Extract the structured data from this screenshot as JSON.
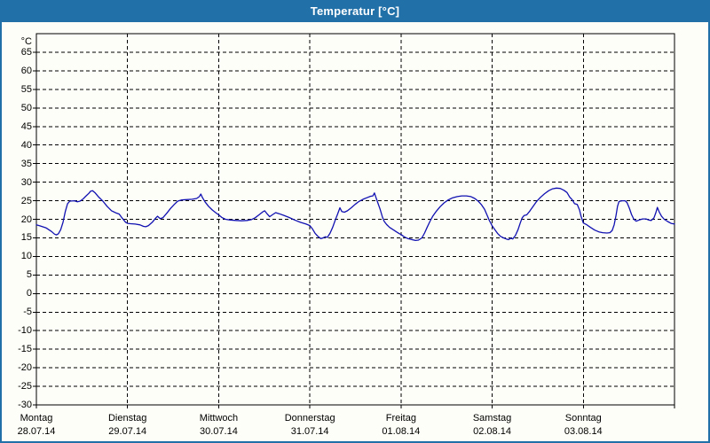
{
  "window": {
    "title": "Temperatur [°C]"
  },
  "chart_data": {
    "type": "line",
    "title": "Temperatur [°C]",
    "unit_label": "°C",
    "legend": "none",
    "grid": {
      "style": "dashed",
      "horizontal_step_deg": 5,
      "vertical_step_hours": 24
    },
    "y_axis": {
      "min": -30,
      "max": 70,
      "tick_step": 5,
      "tick_labels": [
        65,
        60,
        55,
        50,
        45,
        40,
        35,
        30,
        25,
        20,
        15,
        10,
        5,
        0,
        -5,
        -10,
        -15,
        -20,
        -25,
        -30
      ]
    },
    "x_axis": {
      "hours_total": 168,
      "days": [
        {
          "weekday": "Montag",
          "date": "28.07.14"
        },
        {
          "weekday": "Dienstag",
          "date": "29.07.14"
        },
        {
          "weekday": "Mittwoch",
          "date": "30.07.14"
        },
        {
          "weekday": "Donnerstag",
          "date": "31.07.14"
        },
        {
          "weekday": "Freitag",
          "date": "01.08.14"
        },
        {
          "weekday": "Samstag",
          "date": "02.08.14"
        },
        {
          "weekday": "Sonntag",
          "date": "03.08.14"
        }
      ]
    },
    "colors": {
      "titlebar": "#2170a8",
      "title_text": "#ffffff",
      "background": "#fdfef7",
      "plot_border": "#000000",
      "gridline": "#000000",
      "curve": "#1010b2"
    },
    "series": [
      {
        "name": "Temperatur",
        "unit": "°C",
        "points": [
          [
            0,
            18.5
          ],
          [
            1,
            18.2
          ],
          [
            2.5,
            17.7
          ],
          [
            4,
            16.7
          ],
          [
            4.8,
            16.0
          ],
          [
            5.3,
            15.8
          ],
          [
            5.8,
            16.1
          ],
          [
            6.4,
            17.2
          ],
          [
            7,
            19.2
          ],
          [
            7.6,
            22.0
          ],
          [
            8.2,
            24.2
          ],
          [
            8.8,
            24.9
          ],
          [
            10,
            25.0
          ],
          [
            10.8,
            24.7
          ],
          [
            11.5,
            24.9
          ],
          [
            12.2,
            25.4
          ],
          [
            13,
            26.2
          ],
          [
            13.8,
            27.0
          ],
          [
            14.3,
            27.6
          ],
          [
            14.8,
            27.7
          ],
          [
            15.5,
            27.1
          ],
          [
            16.4,
            26.0
          ],
          [
            17.5,
            24.9
          ],
          [
            18.6,
            23.5
          ],
          [
            19.8,
            22.3
          ],
          [
            21,
            21.7
          ],
          [
            21.8,
            21.4
          ],
          [
            22.6,
            20.3
          ],
          [
            23.5,
            19.2
          ],
          [
            24,
            18.9
          ],
          [
            24.8,
            18.8
          ],
          [
            26,
            18.7
          ],
          [
            27.3,
            18.5
          ],
          [
            28.2,
            18.1
          ],
          [
            28.8,
            18.0
          ],
          [
            29.5,
            18.3
          ],
          [
            30.5,
            19.2
          ],
          [
            31.4,
            20.3
          ],
          [
            31.9,
            20.8
          ],
          [
            32.6,
            20.2
          ],
          [
            33.3,
            20.4
          ],
          [
            34.3,
            21.6
          ],
          [
            35.3,
            22.9
          ],
          [
            36.3,
            24.0
          ],
          [
            37.2,
            24.9
          ],
          [
            38.2,
            25.2
          ],
          [
            39.5,
            25.3
          ],
          [
            41,
            25.4
          ],
          [
            42.2,
            25.6
          ],
          [
            42.9,
            26.1
          ],
          [
            43.3,
            26.8
          ],
          [
            43.7,
            25.9
          ],
          [
            44.4,
            24.7
          ],
          [
            45.3,
            23.5
          ],
          [
            46.3,
            22.5
          ],
          [
            47.2,
            21.8
          ],
          [
            48,
            21.2
          ],
          [
            48.8,
            20.5
          ],
          [
            49.8,
            20.0
          ],
          [
            51,
            19.8
          ],
          [
            52.5,
            19.7
          ],
          [
            54,
            19.6
          ],
          [
            55.5,
            19.7
          ],
          [
            56.6,
            19.9
          ],
          [
            57.6,
            20.4
          ],
          [
            58.6,
            21.2
          ],
          [
            59.6,
            22.0
          ],
          [
            60.1,
            22.3
          ],
          [
            60.8,
            21.4
          ],
          [
            61.4,
            20.7
          ],
          [
            62.1,
            21.2
          ],
          [
            63,
            21.8
          ],
          [
            63.9,
            21.5
          ],
          [
            65,
            21.1
          ],
          [
            66.5,
            20.5
          ],
          [
            68,
            19.8
          ],
          [
            69.5,
            19.2
          ],
          [
            71,
            18.7
          ],
          [
            72,
            18.3
          ],
          [
            72.7,
            17.4
          ],
          [
            73.4,
            16.2
          ],
          [
            74.2,
            15.3
          ],
          [
            74.9,
            14.8
          ],
          [
            75.5,
            15.0
          ],
          [
            76.1,
            15.3
          ],
          [
            76.6,
            15.1
          ],
          [
            77.3,
            16.2
          ],
          [
            78,
            17.8
          ],
          [
            78.7,
            19.8
          ],
          [
            79.3,
            21.4
          ],
          [
            79.9,
            23.1
          ],
          [
            80.4,
            22.1
          ],
          [
            81.1,
            21.9
          ],
          [
            81.9,
            22.3
          ],
          [
            82.9,
            23.1
          ],
          [
            83.9,
            24.0
          ],
          [
            84.9,
            24.8
          ],
          [
            86,
            25.4
          ],
          [
            87,
            25.8
          ],
          [
            88,
            26.2
          ],
          [
            88.6,
            26.3
          ],
          [
            89,
            27.1
          ],
          [
            89.4,
            25.9
          ],
          [
            89.9,
            24.4
          ],
          [
            90.5,
            22.7
          ],
          [
            91.1,
            20.6
          ],
          [
            91.6,
            19.4
          ],
          [
            92.2,
            18.6
          ],
          [
            93,
            17.8
          ],
          [
            93.9,
            17.2
          ],
          [
            94.8,
            16.6
          ],
          [
            95.6,
            16.1
          ],
          [
            96,
            15.9
          ],
          [
            96.8,
            15.3
          ],
          [
            97.8,
            14.8
          ],
          [
            98.9,
            14.5
          ],
          [
            99.8,
            14.3
          ],
          [
            100.6,
            14.4
          ],
          [
            101.5,
            15.0
          ],
          [
            102.2,
            16.3
          ],
          [
            102.9,
            17.9
          ],
          [
            103.6,
            19.4
          ],
          [
            104.4,
            20.9
          ],
          [
            105.3,
            22.2
          ],
          [
            106.3,
            23.4
          ],
          [
            107.3,
            24.4
          ],
          [
            108.4,
            25.2
          ],
          [
            109.6,
            25.8
          ],
          [
            110.8,
            26.1
          ],
          [
            112,
            26.3
          ],
          [
            113.2,
            26.3
          ],
          [
            114.4,
            26.1
          ],
          [
            115.4,
            25.6
          ],
          [
            116.4,
            24.8
          ],
          [
            117.2,
            23.9
          ],
          [
            118,
            22.7
          ],
          [
            118.7,
            21.0
          ],
          [
            119.2,
            19.8
          ],
          [
            119.7,
            18.8
          ],
          [
            120,
            18.2
          ],
          [
            120.7,
            17.2
          ],
          [
            121.4,
            16.2
          ],
          [
            122.2,
            15.4
          ],
          [
            123,
            15.0
          ],
          [
            123.7,
            14.7
          ],
          [
            124.3,
            14.5
          ],
          [
            124.9,
            14.9
          ],
          [
            125.4,
            14.7
          ],
          [
            126.1,
            15.6
          ],
          [
            126.8,
            17.2
          ],
          [
            127.4,
            19.0
          ],
          [
            127.9,
            20.4
          ],
          [
            128.4,
            21.0
          ],
          [
            129.1,
            21.2
          ],
          [
            129.9,
            22.2
          ],
          [
            130.8,
            23.5
          ],
          [
            131.7,
            24.8
          ],
          [
            132.7,
            25.9
          ],
          [
            133.8,
            26.9
          ],
          [
            134.9,
            27.7
          ],
          [
            135.9,
            28.2
          ],
          [
            136.9,
            28.4
          ],
          [
            137.9,
            28.3
          ],
          [
            138.9,
            27.8
          ],
          [
            139.7,
            27.2
          ],
          [
            140.4,
            26.0
          ],
          [
            141.1,
            25.2
          ],
          [
            141.7,
            24.2
          ],
          [
            142.4,
            24.0
          ],
          [
            143,
            22.5
          ],
          [
            143.4,
            20.8
          ],
          [
            143.8,
            19.6
          ],
          [
            144,
            19.0
          ],
          [
            144.8,
            18.6
          ],
          [
            145.9,
            17.8
          ],
          [
            147,
            17.1
          ],
          [
            148.1,
            16.6
          ],
          [
            149.1,
            16.4
          ],
          [
            150.2,
            16.3
          ],
          [
            151,
            16.4
          ],
          [
            151.6,
            17.0
          ],
          [
            152.1,
            18.5
          ],
          [
            152.6,
            21.0
          ],
          [
            153,
            23.5
          ],
          [
            153.4,
            24.8
          ],
          [
            154.2,
            25.0
          ],
          [
            155,
            25.0
          ],
          [
            155.5,
            24.5
          ],
          [
            156.1,
            23.0
          ],
          [
            156.7,
            21.3
          ],
          [
            157.3,
            20.0
          ],
          [
            157.9,
            19.5
          ],
          [
            158.7,
            19.8
          ],
          [
            159.6,
            20.1
          ],
          [
            160.5,
            20.1
          ],
          [
            161.2,
            19.8
          ],
          [
            161.9,
            19.7
          ],
          [
            162.6,
            20.4
          ],
          [
            163.1,
            21.8
          ],
          [
            163.5,
            23.2
          ],
          [
            164,
            21.9
          ],
          [
            164.6,
            20.8
          ],
          [
            165.3,
            20.0
          ],
          [
            166.2,
            19.4
          ],
          [
            167.1,
            18.9
          ],
          [
            168,
            18.7
          ]
        ]
      }
    ]
  }
}
